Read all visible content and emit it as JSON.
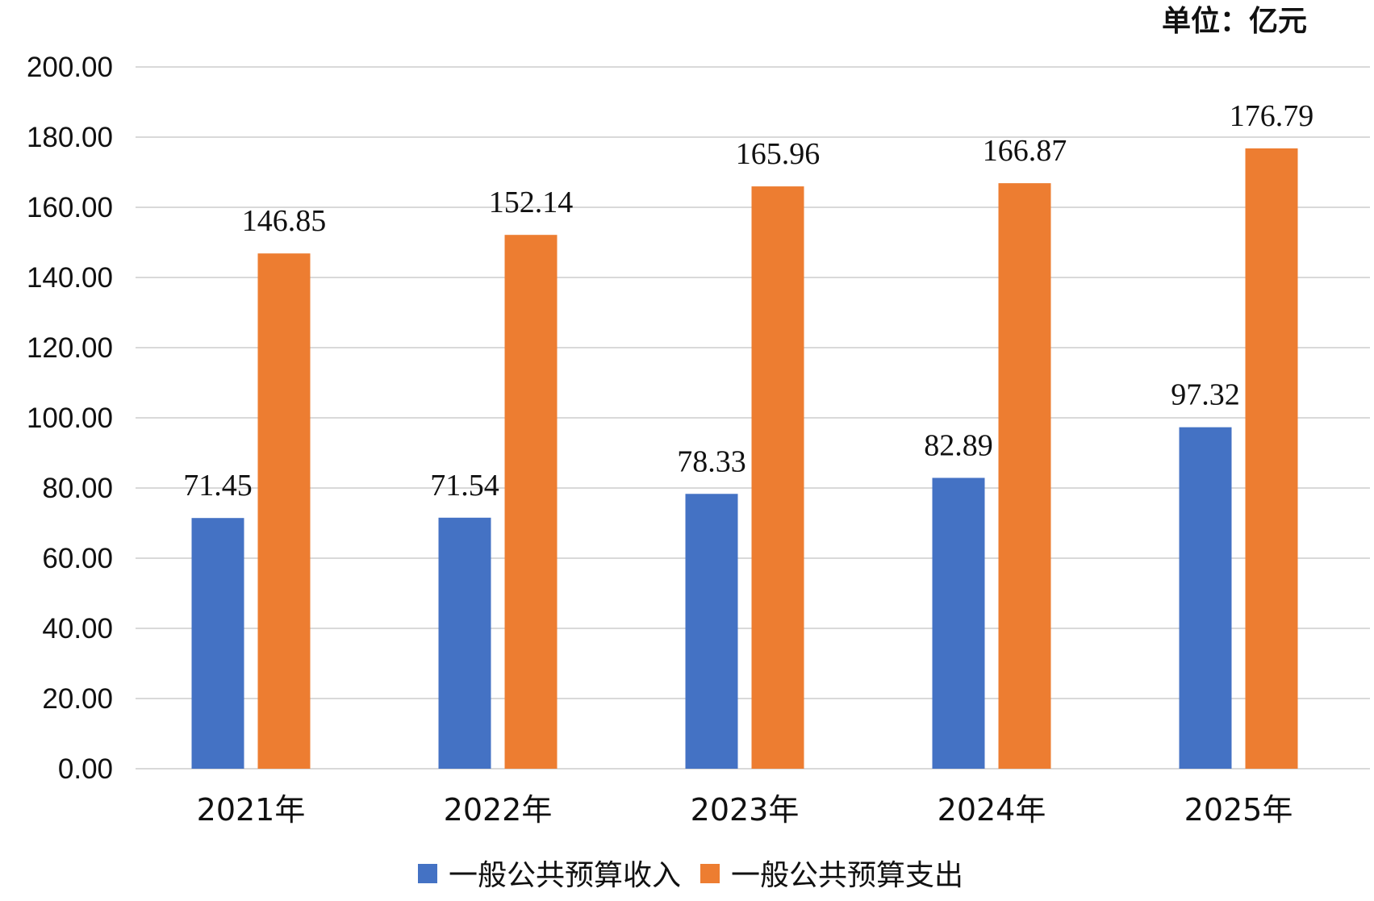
{
  "chart_data": {
    "type": "bar",
    "unit": "单位：亿元",
    "categories": [
      "2021年",
      "2022年",
      "2023年",
      "2024年",
      "2025年"
    ],
    "series": [
      {
        "name": "一般公共预算收入",
        "color": "#4472C4",
        "values": [
          71.45,
          71.54,
          78.33,
          82.89,
          97.32
        ],
        "labels": [
          "71.45",
          "71.54",
          "78.33",
          "82.89",
          "97.32"
        ]
      },
      {
        "name": "一般公共预算支出",
        "color": "#ED7D31",
        "values": [
          146.85,
          152.14,
          165.96,
          166.87,
          176.79
        ],
        "labels": [
          "146.85",
          "152.14",
          "165.96",
          "166.87",
          "176.79"
        ]
      }
    ],
    "yticks": [
      "0.00",
      "20.00",
      "40.00",
      "60.00",
      "80.00",
      "100.00",
      "120.00",
      "140.00",
      "160.00",
      "180.00",
      "200.00"
    ],
    "ylim": [
      0,
      200
    ],
    "grid": true,
    "legend_position": "bottom"
  }
}
